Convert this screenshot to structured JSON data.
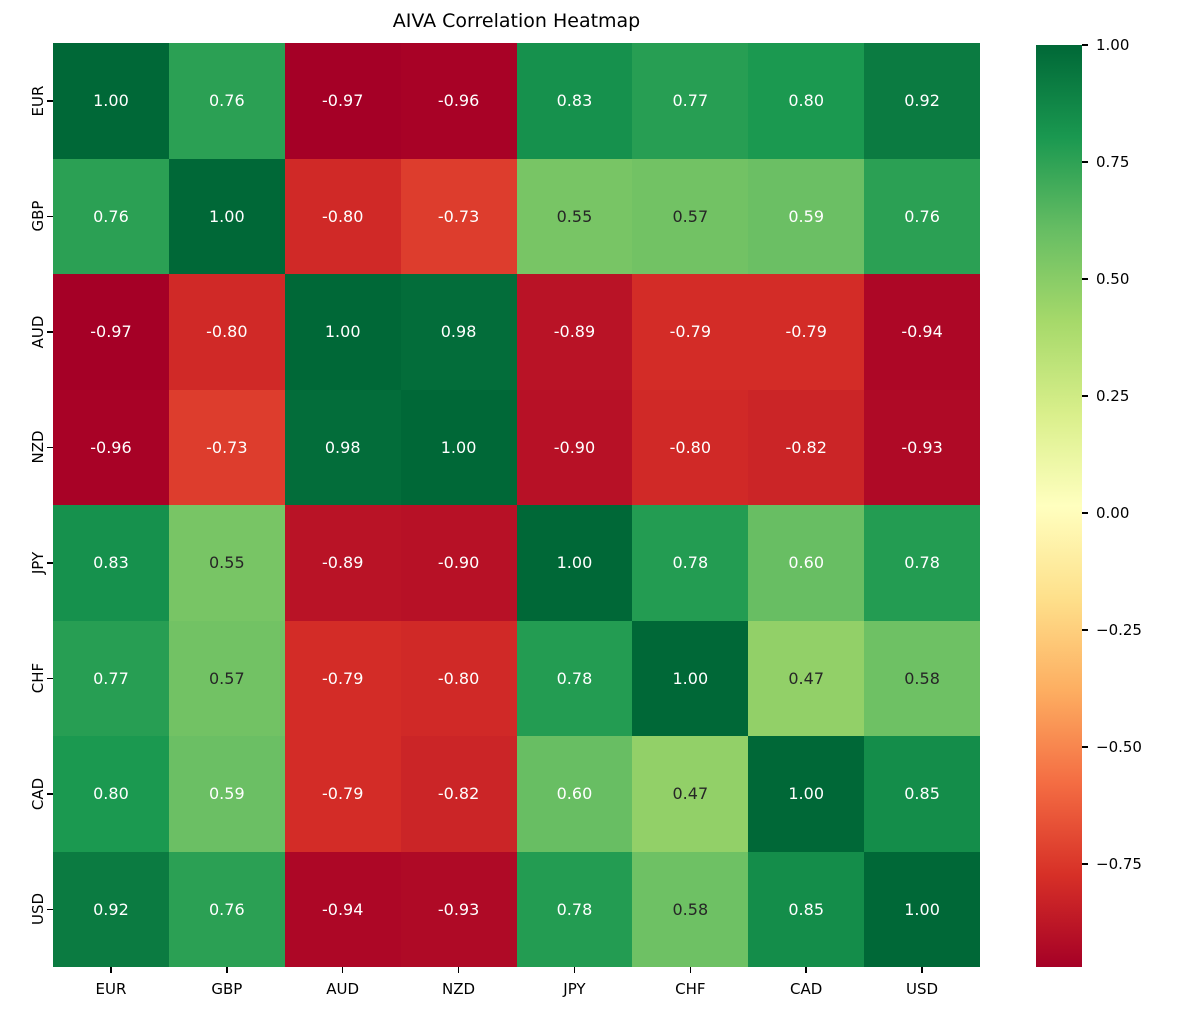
{
  "title": "AIVA Correlation Heatmap",
  "chart_data": {
    "type": "heatmap",
    "title": "AIVA Correlation Heatmap",
    "categories": [
      "EUR",
      "GBP",
      "AUD",
      "NZD",
      "JPY",
      "CHF",
      "CAD",
      "USD"
    ],
    "matrix": [
      [
        1.0,
        0.76,
        -0.97,
        -0.96,
        0.83,
        0.77,
        0.8,
        0.92
      ],
      [
        0.76,
        1.0,
        -0.8,
        -0.73,
        0.55,
        0.57,
        0.59,
        0.76
      ],
      [
        -0.97,
        -0.8,
        1.0,
        0.98,
        -0.89,
        -0.79,
        -0.79,
        -0.94
      ],
      [
        -0.96,
        -0.73,
        0.98,
        1.0,
        -0.9,
        -0.8,
        -0.82,
        -0.93
      ],
      [
        0.83,
        0.55,
        -0.89,
        -0.9,
        1.0,
        0.78,
        0.6,
        0.78
      ],
      [
        0.77,
        0.57,
        -0.79,
        -0.8,
        0.78,
        1.0,
        0.47,
        0.58
      ],
      [
        0.8,
        0.59,
        -0.79,
        -0.82,
        0.6,
        0.47,
        1.0,
        0.85
      ],
      [
        0.92,
        0.76,
        -0.94,
        -0.93,
        0.78,
        0.58,
        0.85,
        1.0
      ]
    ],
    "vmin": -0.97,
    "vmax": 1.0,
    "value_format_decimals": 2,
    "colormap": "RdYlGn",
    "colormap_stops": [
      "#a50026",
      "#d73027",
      "#f46d43",
      "#fdae61",
      "#fee08b",
      "#ffffbf",
      "#d9ef8b",
      "#a6d96a",
      "#66bd63",
      "#1a9850",
      "#006837"
    ],
    "legend_position": "right-colorbar",
    "grid": false,
    "colorbar_ticks": [
      {
        "label": "1.00",
        "value": 1.0
      },
      {
        "label": "0.75",
        "value": 0.75
      },
      {
        "label": "0.50",
        "value": 0.5
      },
      {
        "label": "0.25",
        "value": 0.25
      },
      {
        "label": "0.00",
        "value": 0.0
      },
      {
        "label": "−0.25",
        "value": -0.25
      },
      {
        "label": "−0.50",
        "value": -0.5
      },
      {
        "label": "−0.75",
        "value": -0.75
      }
    ],
    "colors": {
      "annotation_dark": "#262626",
      "annotation_light": "#ffffff",
      "axis_text": "#000000",
      "background": "#ffffff"
    }
  }
}
